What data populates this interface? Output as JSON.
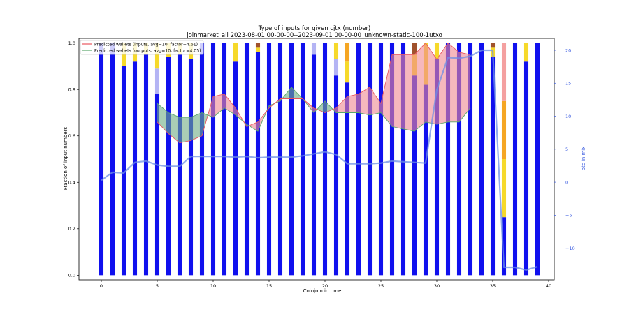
{
  "chart_data": {
    "type": "bar",
    "title": "Type of inputs for given cjtx (number)",
    "subtitle": "joinmarket_all 2023-08-01 00-00-00--2023-09-01 00-00-00_unknown-static-100-1utxo",
    "xlabel": "Coinjoin in time",
    "ylabel": "Fraction of input numbers",
    "ylabel_right": "btc in mix",
    "xlim": [
      -2,
      40.5
    ],
    "ylim": [
      -0.02,
      1.02
    ],
    "ylim_right": [
      -14.8,
      21.8
    ],
    "xticks": [
      0,
      5,
      10,
      15,
      20,
      25,
      30,
      35,
      40
    ],
    "yticks": [
      0.0,
      0.2,
      0.4,
      0.6,
      0.8,
      1.0
    ],
    "yticks_right": [
      -10,
      -5,
      0,
      5,
      10,
      15,
      20
    ],
    "legend_position": "top-left",
    "colors": {
      "blue": "#1010ee",
      "light_blue": "#b4b4f4",
      "yellow": "#f6d92a",
      "orange": "#f5a623",
      "brown": "#a0522d",
      "pink": "#f4a0a0",
      "inputs_line": "#e8575f",
      "inputs_fill": "#f08891",
      "outputs_line": "#5aa76a",
      "outputs_fill": "#6fae84",
      "btc_line": "#6d8fe6"
    },
    "x": [
      0,
      1,
      2,
      3,
      4,
      5,
      6,
      7,
      8,
      9,
      10,
      11,
      12,
      13,
      14,
      15,
      16,
      17,
      18,
      19,
      20,
      21,
      22,
      23,
      24,
      25,
      26,
      27,
      28,
      29,
      30,
      31,
      32,
      33,
      34,
      35,
      36,
      37,
      38,
      39
    ],
    "series": [
      {
        "name": "blue",
        "values": [
          1,
          1,
          0.9,
          0.92,
          0.95,
          0.78,
          0.94,
          0.95,
          0.93,
          1,
          1,
          1,
          0.92,
          1,
          0.96,
          1,
          1,
          1,
          1,
          0.95,
          1,
          0.86,
          0.83,
          1,
          1,
          1,
          1,
          1,
          0.86,
          0.82,
          0.93,
          1,
          1,
          1,
          1,
          0.94,
          0.25,
          1,
          0.92,
          1
        ]
      },
      {
        "name": "light blue",
        "values": [
          0,
          0,
          0,
          0,
          0,
          0.11,
          0,
          0,
          0,
          0,
          0,
          0,
          0,
          0,
          0,
          0,
          0,
          0,
          0,
          0.05,
          0,
          0.07,
          0,
          0,
          0,
          0,
          0,
          0,
          0,
          0,
          0,
          0,
          0,
          0,
          0,
          0,
          0,
          0,
          0,
          0
        ]
      },
      {
        "name": "yellow",
        "values": [
          0,
          0,
          0.1,
          0.08,
          0.05,
          0.11,
          0.06,
          0.05,
          0.07,
          0,
          0,
          0,
          0.08,
          0,
          0.02,
          0,
          0,
          0,
          0,
          0,
          0,
          0.07,
          0.09,
          0,
          0,
          0,
          0,
          0,
          0.09,
          0.18,
          0.07,
          0,
          0,
          0,
          0,
          0.04,
          0.25,
          0,
          0.08,
          0
        ]
      },
      {
        "name": "orange",
        "values": [
          0,
          0,
          0,
          0,
          0,
          0,
          0,
          0,
          0,
          0,
          0,
          0,
          0,
          0,
          0,
          0,
          0,
          0,
          0,
          0,
          0,
          0,
          0.08,
          0,
          0,
          0,
          0,
          0,
          0,
          0,
          0,
          0,
          0,
          0,
          0,
          0,
          0.25,
          0,
          0,
          0
        ]
      },
      {
        "name": "brown",
        "values": [
          0,
          0,
          0,
          0,
          0,
          0,
          0,
          0,
          0,
          0,
          0,
          0,
          0,
          0,
          0.02,
          0,
          0,
          0,
          0,
          0,
          0,
          0,
          0,
          0,
          0,
          0,
          0,
          0,
          0.05,
          0,
          0,
          0,
          0,
          0,
          0,
          0.02,
          0,
          0,
          0,
          0
        ]
      },
      {
        "name": "pink",
        "values": [
          0,
          0,
          0,
          0,
          0,
          0,
          0,
          0,
          0,
          0,
          0,
          0,
          0,
          0,
          0,
          0,
          0,
          0,
          0,
          0,
          0,
          0,
          0,
          0,
          0,
          0,
          0,
          0,
          0,
          0,
          0,
          0,
          0,
          0,
          0,
          0,
          0.25,
          0,
          0,
          0
        ]
      }
    ],
    "lines": [
      {
        "name": "Predicted wallets (inputs, avg=10, factor=4.61)",
        "x": [
          5,
          6,
          7,
          8,
          9,
          10,
          11,
          12,
          13,
          14,
          15,
          16,
          17,
          18,
          19,
          20,
          21,
          22,
          23,
          24,
          25,
          26,
          27,
          28,
          29,
          30,
          31,
          32,
          33
        ],
        "values": [
          0.66,
          0.61,
          0.57,
          0.58,
          0.6,
          0.77,
          0.78,
          0.72,
          0.64,
          0.66,
          0.72,
          0.76,
          0.76,
          0.76,
          0.72,
          0.7,
          0.72,
          0.77,
          0.78,
          0.81,
          0.74,
          0.95,
          0.95,
          0.95,
          1.0,
          0.93,
          1.0,
          0.96,
          0.95
        ]
      },
      {
        "name": "Predicted wallets (outputs, avg=10, factor=4.05)",
        "x": [
          5,
          6,
          7,
          8,
          9,
          10,
          11,
          12,
          13,
          14,
          15,
          16,
          17,
          18,
          19,
          20,
          21,
          22,
          23,
          24,
          25,
          26,
          27,
          28,
          29,
          30,
          31,
          32,
          33
        ],
        "values": [
          0.74,
          0.7,
          0.68,
          0.68,
          0.7,
          0.68,
          0.72,
          0.69,
          0.65,
          0.62,
          0.73,
          0.75,
          0.81,
          0.76,
          0.7,
          0.75,
          0.7,
          0.7,
          0.7,
          0.69,
          0.7,
          0.64,
          0.63,
          0.62,
          0.66,
          0.65,
          0.66,
          0.66,
          0.72
        ]
      }
    ],
    "right_line": {
      "x": [
        0,
        1,
        2,
        3,
        4,
        5,
        6,
        7,
        8,
        9,
        10,
        11,
        12,
        13,
        14,
        15,
        16,
        17,
        18,
        19,
        20,
        21,
        22,
        23,
        24,
        25,
        26,
        27,
        28,
        29,
        30,
        31,
        32,
        33,
        34,
        35,
        36,
        37,
        38,
        39
      ],
      "values": [
        0.3,
        1.5,
        1.4,
        3.0,
        3.2,
        2.6,
        2.4,
        2.4,
        3.9,
        3.9,
        3.9,
        3.9,
        3.8,
        3.9,
        3.7,
        3.8,
        3.8,
        3.8,
        4.0,
        4.3,
        4.6,
        4.2,
        2.8,
        2.8,
        2.8,
        2.9,
        3.2,
        3.1,
        3.0,
        2.9,
        14.0,
        18.9,
        18.8,
        19.1,
        20.0,
        20.0,
        -12.9,
        -12.9,
        -13.3,
        -12.8
      ]
    }
  }
}
